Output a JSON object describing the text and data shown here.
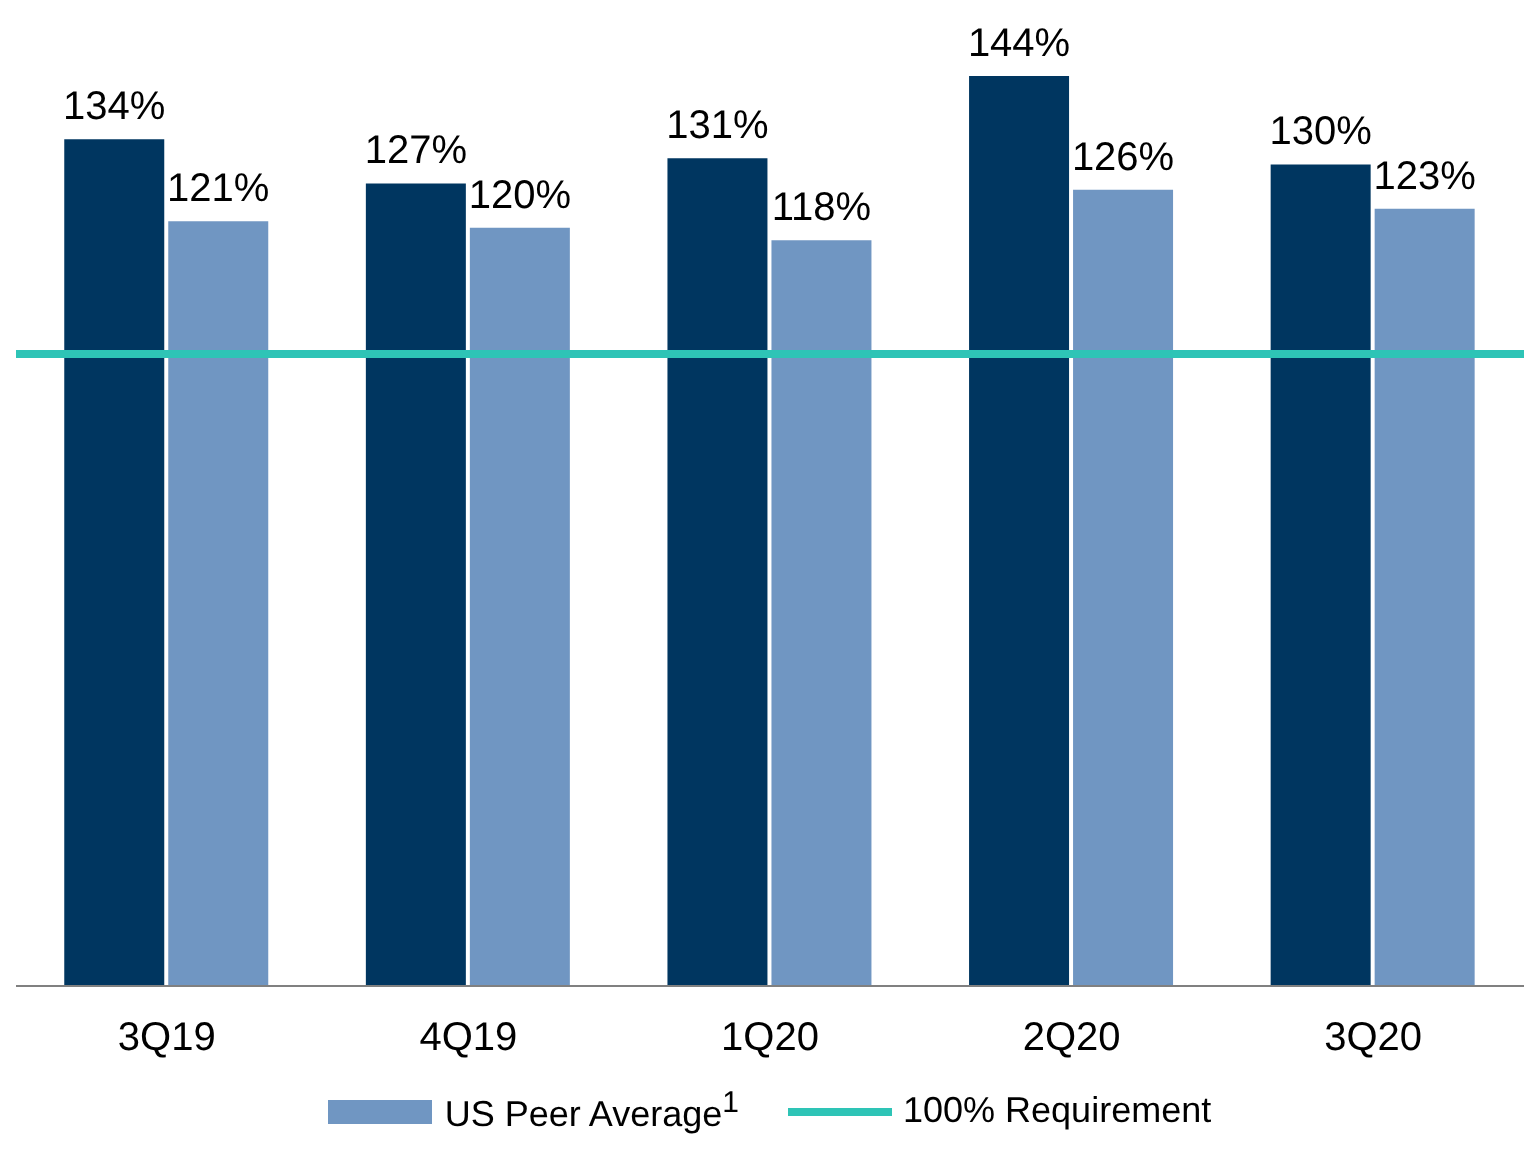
{
  "chart_data": {
    "type": "bar",
    "categories": [
      "3Q19",
      "4Q19",
      "1Q20",
      "2Q20",
      "3Q20"
    ],
    "series": [
      {
        "color": "#003660",
        "values": [
          134,
          127,
          131,
          144,
          130
        ],
        "value_labels": [
          "134%",
          "127%",
          "131%",
          "144%",
          "130%"
        ]
      },
      {
        "name": "US Peer Average$^{1}$",
        "color": "#7096c2",
        "values": [
          121,
          120,
          118,
          126,
          123
        ],
        "value_labels": [
          "121%",
          "120%",
          "118%",
          "126%",
          "123%"
        ]
      }
    ],
    "ylim": [
      0,
      144
    ],
    "tick_labels": "x",
    "grid": false,
    "legend": "bottom",
    "ref_lines": [
      {
        "axis": "y",
        "value": 100,
        "label": "100% Requirement",
        "color": "#2ec4b6"
      }
    ]
  }
}
